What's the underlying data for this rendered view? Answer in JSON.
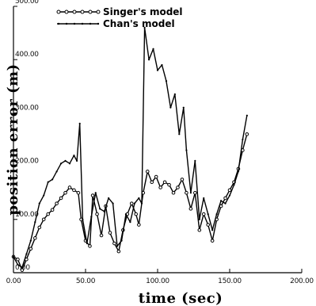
{
  "chart_data": {
    "type": "line",
    "title": "",
    "xlabel": "time (sec)",
    "ylabel": "position error (m)",
    "xlim": [
      0,
      200
    ],
    "ylim": [
      0,
      500
    ],
    "x_tick_labels": [
      "0.00",
      "50.00",
      "100.00",
      "150.00",
      "200.00"
    ],
    "y_tick_labels": [
      "0.00",
      "100.00",
      "200.00",
      "300.00",
      "400.00",
      "500.00"
    ],
    "grid": false,
    "legend_position": "top-center",
    "series": [
      {
        "name": "Singer's model",
        "marker": "circle",
        "color": "#000000",
        "points": [
          [
            0,
            30
          ],
          [
            3,
            25
          ],
          [
            6,
            5
          ],
          [
            9,
            25
          ],
          [
            12,
            45
          ],
          [
            15,
            65
          ],
          [
            18,
            85
          ],
          [
            21,
            100
          ],
          [
            24,
            110
          ],
          [
            27,
            118
          ],
          [
            30,
            130
          ],
          [
            33,
            140
          ],
          [
            36,
            150
          ],
          [
            39,
            160
          ],
          [
            42,
            155
          ],
          [
            45,
            150
          ],
          [
            47,
            100
          ],
          [
            50,
            60
          ],
          [
            53,
            50
          ],
          [
            55,
            145
          ],
          [
            58,
            110
          ],
          [
            61,
            70
          ],
          [
            64,
            125
          ],
          [
            67,
            75
          ],
          [
            70,
            55
          ],
          [
            73,
            40
          ],
          [
            76,
            80
          ],
          [
            79,
            110
          ],
          [
            82,
            130
          ],
          [
            85,
            110
          ],
          [
            87,
            90
          ],
          [
            90,
            150
          ],
          [
            93,
            190
          ],
          [
            96,
            170
          ],
          [
            99,
            180
          ],
          [
            102,
            160
          ],
          [
            105,
            170
          ],
          [
            108,
            165
          ],
          [
            111,
            150
          ],
          [
            114,
            160
          ],
          [
            117,
            175
          ],
          [
            120,
            150
          ],
          [
            123,
            120
          ],
          [
            126,
            150
          ],
          [
            129,
            80
          ],
          [
            132,
            110
          ],
          [
            135,
            90
          ],
          [
            138,
            60
          ],
          [
            141,
            100
          ],
          [
            144,
            125
          ],
          [
            147,
            140
          ],
          [
            150,
            155
          ],
          [
            153,
            170
          ],
          [
            156,
            195
          ],
          [
            159,
            230
          ],
          [
            162,
            260
          ]
        ]
      },
      {
        "name": "Chan's model",
        "marker": "dot",
        "color": "#000000",
        "points": [
          [
            0,
            30
          ],
          [
            3,
            15
          ],
          [
            6,
            10
          ],
          [
            9,
            35
          ],
          [
            12,
            60
          ],
          [
            15,
            95
          ],
          [
            18,
            130
          ],
          [
            21,
            145
          ],
          [
            24,
            170
          ],
          [
            27,
            175
          ],
          [
            30,
            190
          ],
          [
            33,
            205
          ],
          [
            36,
            210
          ],
          [
            39,
            205
          ],
          [
            42,
            220
          ],
          [
            44,
            210
          ],
          [
            46,
            280
          ],
          [
            48,
            100
          ],
          [
            51,
            55
          ],
          [
            54,
            105
          ],
          [
            57,
            150
          ],
          [
            60,
            120
          ],
          [
            63,
            115
          ],
          [
            66,
            140
          ],
          [
            69,
            130
          ],
          [
            72,
            50
          ],
          [
            75,
            60
          ],
          [
            78,
            110
          ],
          [
            81,
            95
          ],
          [
            84,
            130
          ],
          [
            87,
            140
          ],
          [
            89,
            130
          ],
          [
            91,
            460
          ],
          [
            94,
            400
          ],
          [
            97,
            420
          ],
          [
            100,
            380
          ],
          [
            103,
            390
          ],
          [
            106,
            360
          ],
          [
            109,
            310
          ],
          [
            112,
            335
          ],
          [
            115,
            260
          ],
          [
            118,
            310
          ],
          [
            120,
            230
          ],
          [
            123,
            150
          ],
          [
            126,
            210
          ],
          [
            129,
            100
          ],
          [
            132,
            140
          ],
          [
            135,
            110
          ],
          [
            138,
            80
          ],
          [
            141,
            110
          ],
          [
            144,
            135
          ],
          [
            147,
            130
          ],
          [
            150,
            145
          ],
          [
            153,
            165
          ],
          [
            156,
            190
          ],
          [
            159,
            250
          ],
          [
            162,
            295
          ]
        ]
      }
    ]
  }
}
